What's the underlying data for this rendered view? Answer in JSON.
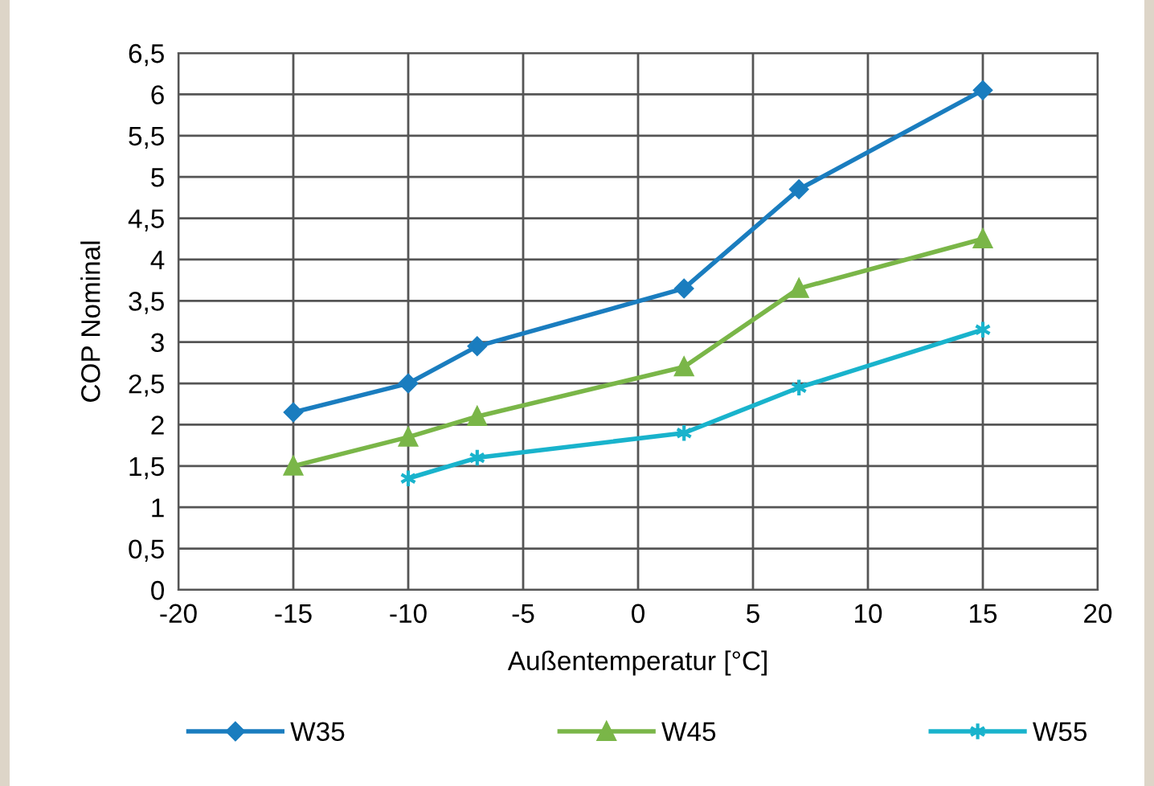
{
  "chart_data": {
    "type": "line",
    "xlabel": "Außentemperatur [°C]",
    "ylabel": "COP Nominal",
    "series": [
      {
        "name": "W35",
        "color": "#1a7dbf",
        "marker": "diamond",
        "x": [
          -15,
          -10,
          -7,
          2,
          7,
          15
        ],
        "values": [
          2.15,
          2.5,
          2.95,
          3.65,
          4.85,
          6.05
        ]
      },
      {
        "name": "W45",
        "color": "#7ab648",
        "marker": "triangle",
        "x": [
          -15,
          -10,
          -7,
          2,
          7,
          15
        ],
        "values": [
          1.5,
          1.85,
          2.1,
          2.7,
          3.65,
          4.25
        ]
      },
      {
        "name": "W55",
        "color": "#19b3cc",
        "marker": "cross",
        "x": [
          -10,
          -7,
          2,
          7,
          15
        ],
        "values": [
          1.35,
          1.6,
          1.9,
          2.45,
          3.15
        ]
      }
    ],
    "xlim": [
      -20,
      20
    ],
    "xticks": [
      -20,
      -15,
      -10,
      -5,
      0,
      5,
      10,
      15,
      20
    ],
    "ylim": [
      0,
      6.5
    ],
    "yticks": [
      0,
      {
        "value": 0.5,
        "label": "0,5"
      },
      1,
      {
        "value": 1.5,
        "label": "1,5"
      },
      2,
      {
        "value": 2.5,
        "label": "2,5"
      },
      3,
      {
        "value": 3.5,
        "label": "3,5"
      },
      4,
      {
        "value": 4.5,
        "label": "4,5"
      },
      5,
      {
        "value": 5.5,
        "label": "5,5"
      },
      6,
      {
        "value": 6.5,
        "label": "6,5"
      }
    ],
    "grid": true,
    "legend": "bottom",
    "line_style": "solid"
  }
}
